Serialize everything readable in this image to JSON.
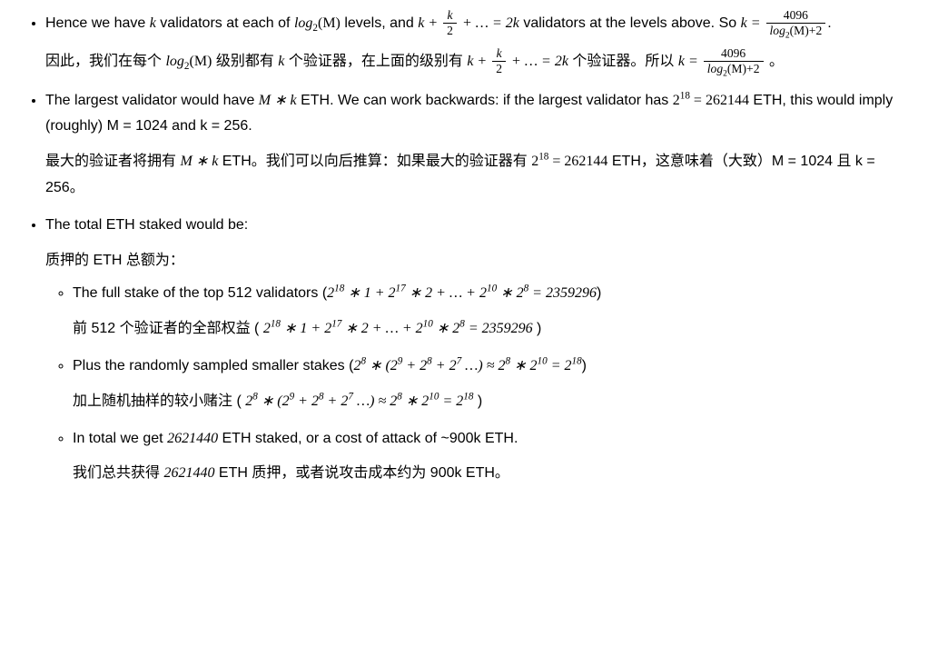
{
  "b1": {
    "en_pre": "Hence we have ",
    "en_mid1": " validators at each of ",
    "en_mid2": " levels, and ",
    "en_mid3": " validators at the levels above. So ",
    "en_post": ".",
    "cn_pre": "因此，我们在每个 ",
    "cn_mid1": " 级别都有 ",
    "cn_mid2": " 个验证器，在上面的级别有 ",
    "cn_mid3": " 个验证器。所以 ",
    "cn_post": " 。",
    "k": "k",
    "log2M": "log",
    "log2M_sub": "2",
    "log2M_arg": "(M)",
    "sum_a": "k + ",
    "sum_frac_num": "k",
    "sum_frac_den": "2",
    "sum_b": " + … = 2k",
    "eq_lhs": "k = ",
    "frac_num": "4096",
    "frac_den_a": "log",
    "frac_den_sub": "2",
    "frac_den_b": "(M)+2"
  },
  "b2": {
    "en_pre": "The largest validator would have ",
    "en_math1": "M ∗ k",
    "en_mid1": " ETH. We can work backwards: if the largest validator has ",
    "en_math2a": "2",
    "en_math2exp": "18",
    "en_math2b": " = 262144",
    "en_post": " ETH, this would imply (roughly) M = 1024 and k = 256.",
    "cn_pre": "最大的验证者将拥有 ",
    "cn_mid1": " ETH。我们可以向后推算：如果最大的验证器有 ",
    "cn_post": " ETH，这意味着（大致）M = 1024 且 k = 256。"
  },
  "b3": {
    "en": "The total ETH staked would be:",
    "cn": "质押的 ETH 总额为：",
    "s1": {
      "en_pre": "The full stake of the top 512 validators (",
      "cn_pre": "前 512 个验证者的全部权益 ( ",
      "m1": "2",
      "e1": "18",
      "m2": " ∗ 1 + 2",
      "e2": "17",
      "m3": " ∗ 2 + … + 2",
      "e3": "10",
      "m4": " ∗ 2",
      "e4": "8",
      "m5": " = 2359296",
      "en_post": ")",
      "cn_post": " )"
    },
    "s2": {
      "en_pre": "Plus the randomly sampled smaller stakes (",
      "cn_pre": "加上随机抽样的较小赌注 ( ",
      "m1": "2",
      "e1": "8",
      "m2": " ∗ (2",
      "e2": "9",
      "m3": " + 2",
      "e3": "8",
      "m4": " + 2",
      "e4": "7",
      "m5": " …) ≈ 2",
      "e5": "8",
      "m6": " ∗ 2",
      "e6": "10",
      "m7": " = 2",
      "e7": "18",
      "en_post": ")",
      "cn_post": " )"
    },
    "s3": {
      "en_pre": "In total we get ",
      "en_num": "2621440",
      "en_post": " ETH staked, or a cost of attack of ~900k ETH.",
      "cn_pre": "我们总共获得 ",
      "cn_post": " ETH 质押，或者说攻击成本约为 900k ETH。"
    }
  }
}
